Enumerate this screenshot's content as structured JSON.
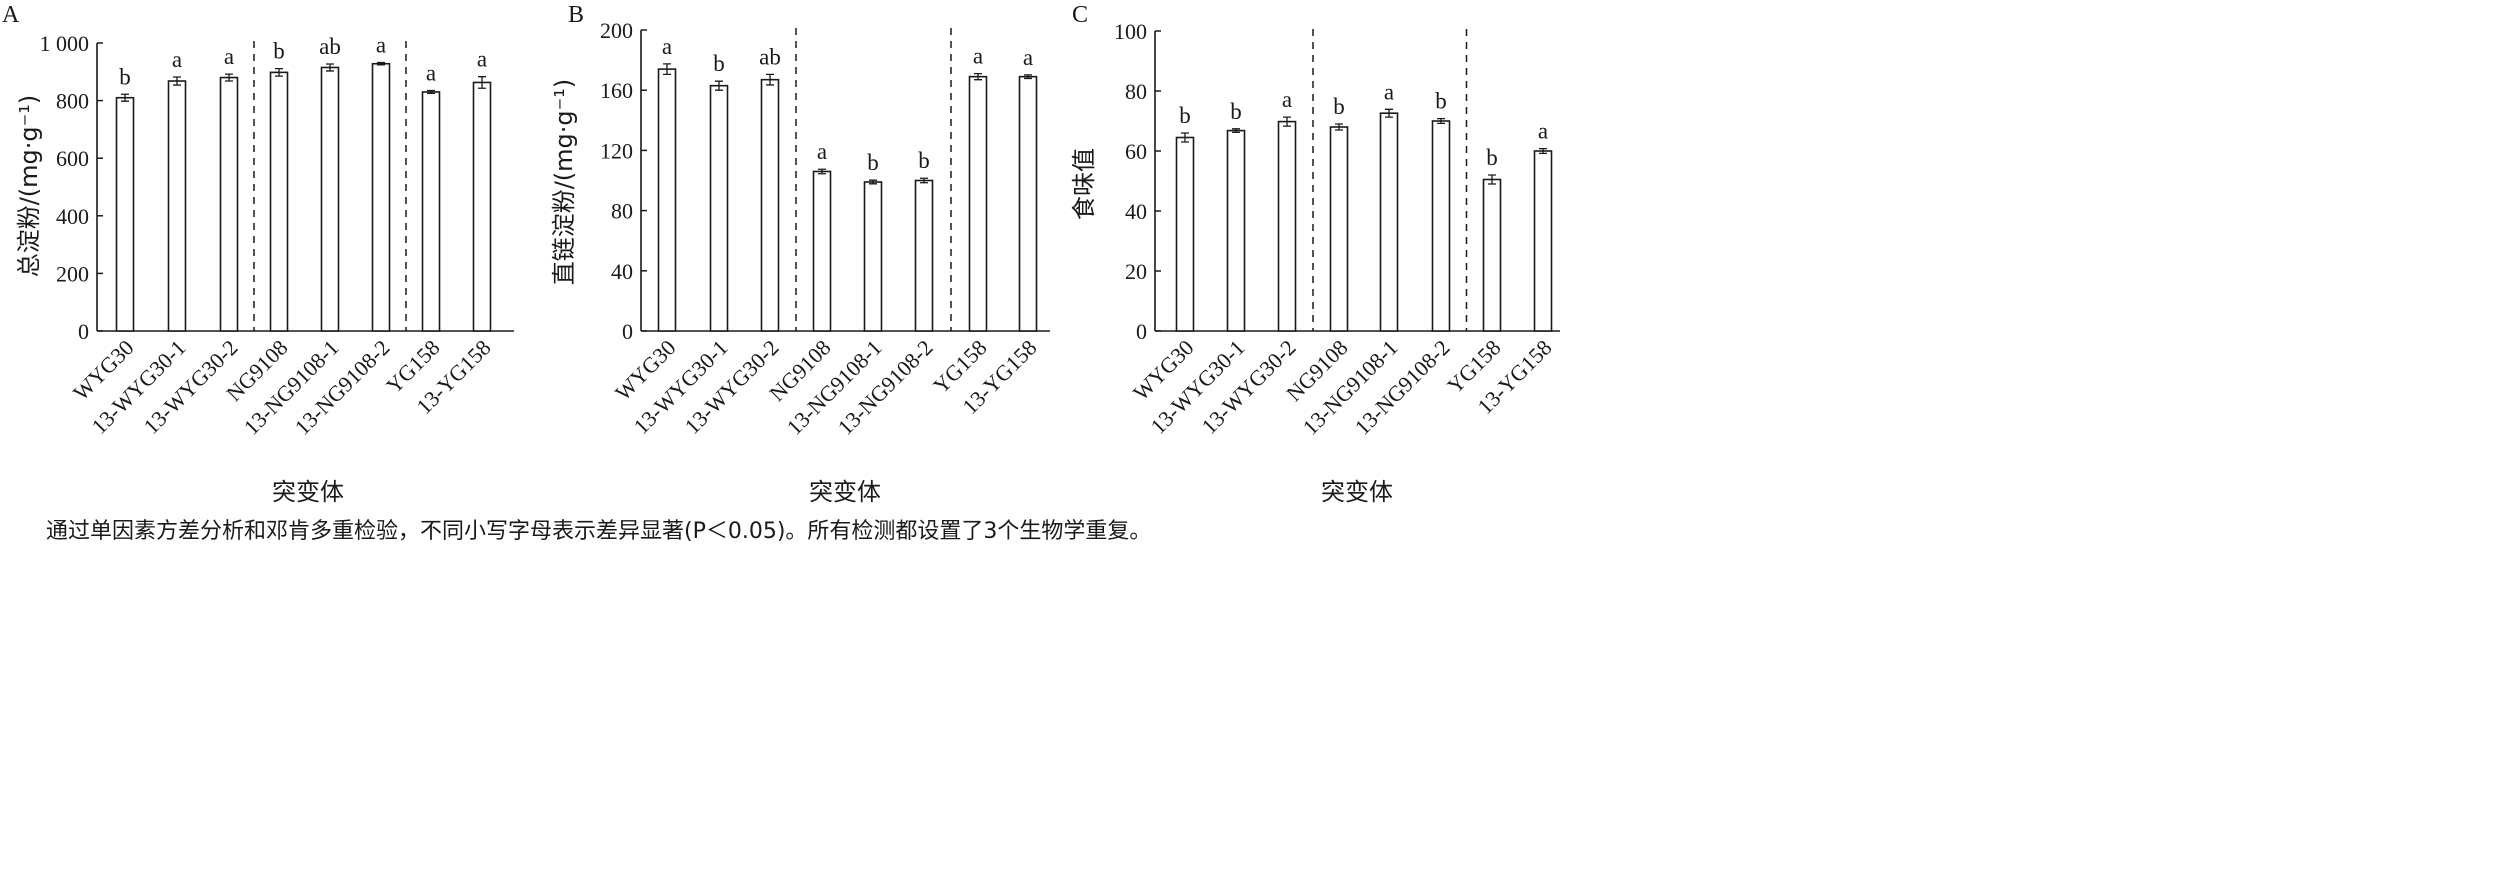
{
  "chart_data": [
    {
      "type": "bar",
      "panel_label": "A",
      "ylabel": "总淀粉/(mg·g⁻¹)",
      "xlabel": "突变体",
      "ylim": [
        0,
        1000
      ],
      "ytick_labels": [
        "0",
        "200",
        "400",
        "600",
        "800",
        "1 000"
      ],
      "categories": [
        "WYG30",
        "13-WYG30-1",
        "13-WYG30-2",
        "NG9108",
        "13-NG9108-1",
        "13-NG9108-2",
        "YG158",
        "13-YG158"
      ],
      "values": [
        810,
        868,
        880,
        898,
        915,
        928,
        830,
        863
      ],
      "errors": [
        12,
        14,
        12,
        13,
        12,
        4,
        5,
        20
      ],
      "significance": [
        "b",
        "a",
        "a",
        "b",
        "ab",
        "a",
        "a",
        "a"
      ],
      "group_dividers_after": [
        2,
        5
      ],
      "grid": false
    },
    {
      "type": "bar",
      "panel_label": "B",
      "ylabel": "直链淀粉/(mg·g⁻¹)",
      "xlabel": "突变体",
      "ylim": [
        0,
        200
      ],
      "ytick_labels": [
        "0",
        "40",
        "80",
        "120",
        "160",
        "200"
      ],
      "categories": [
        "WYG30",
        "13-WYG30-1",
        "13-WYG30-2",
        "NG9108",
        "13-NG9108-1",
        "13-NG9108-2",
        "YG158",
        "13-YG158"
      ],
      "values": [
        174,
        163,
        167,
        106,
        99,
        100,
        169,
        169
      ],
      "errors": [
        3.5,
        3,
        3.5,
        1.5,
        1.2,
        1.5,
        2,
        1.2
      ],
      "significance": [
        "a",
        "b",
        "ab",
        "a",
        "b",
        "b",
        "a",
        "a"
      ],
      "group_dividers_after": [
        2,
        5
      ],
      "grid": false
    },
    {
      "type": "bar",
      "panel_label": "C",
      "ylabel": "食味值",
      "xlabel": "突变体",
      "ylim": [
        0,
        100
      ],
      "ytick_labels": [
        "0",
        "20",
        "40",
        "60",
        "80",
        "100"
      ],
      "categories": [
        "WYG30",
        "13-WYG30-1",
        "13-WYG30-2",
        "NG9108",
        "13-NG9108-1",
        "13-NG9108-2",
        "YG158",
        "13-YG158"
      ],
      "values": [
        64.5,
        66.8,
        69.8,
        68,
        72.6,
        70,
        50.5,
        60
      ],
      "errors": [
        1.5,
        0.6,
        1.5,
        1.0,
        1.3,
        0.8,
        1.5,
        0.8
      ],
      "significance": [
        "b",
        "b",
        "a",
        "b",
        "a",
        "b",
        "b",
        "a"
      ],
      "group_dividers_after": [
        2,
        5
      ],
      "grid": false
    }
  ],
  "caption": "通过单因素方差分析和邓肯多重检验，不同小写字母表示差异显著(P＜0.05)。所有检测都设置了3个生物学重复。"
}
